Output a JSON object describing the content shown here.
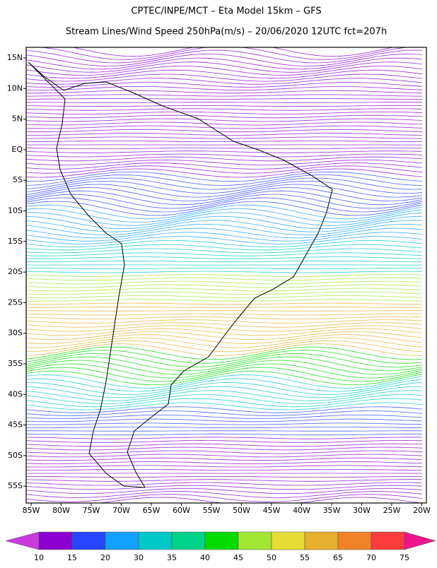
{
  "header": {
    "title": "CPTEC/INPE/MCT –  Eta Model 15km – GFS",
    "subtitle": "Stream Lines/Wind Speed 250hPa(m/s) – 20/06/2020 12UTC fct=207h"
  },
  "map": {
    "lat_labels": [
      "15N",
      "10N",
      "5N",
      "EQ",
      "5S",
      "10S",
      "15S",
      "20S",
      "25S",
      "30S",
      "35S",
      "40S",
      "45S",
      "50S",
      "55S"
    ],
    "lon_labels": [
      "85W",
      "80W",
      "75W",
      "70W",
      "65W",
      "60W",
      "55W",
      "50W",
      "45W",
      "40W",
      "35W",
      "30W",
      "25W",
      "20W"
    ]
  },
  "colorbar": {
    "under_color": "#c83cdc",
    "over_color": "#f0148c",
    "colors": [
      "#8c00d2",
      "#2846ff",
      "#14a0ff",
      "#00c8c8",
      "#00d28c",
      "#00dc00",
      "#a0e632",
      "#e6dc32",
      "#e6af2d",
      "#f08228",
      "#fa3c3c"
    ],
    "labels": [
      "10",
      "15",
      "20",
      "30",
      "35",
      "40",
      "45",
      "50",
      "55",
      "65",
      "70",
      "75"
    ]
  }
}
